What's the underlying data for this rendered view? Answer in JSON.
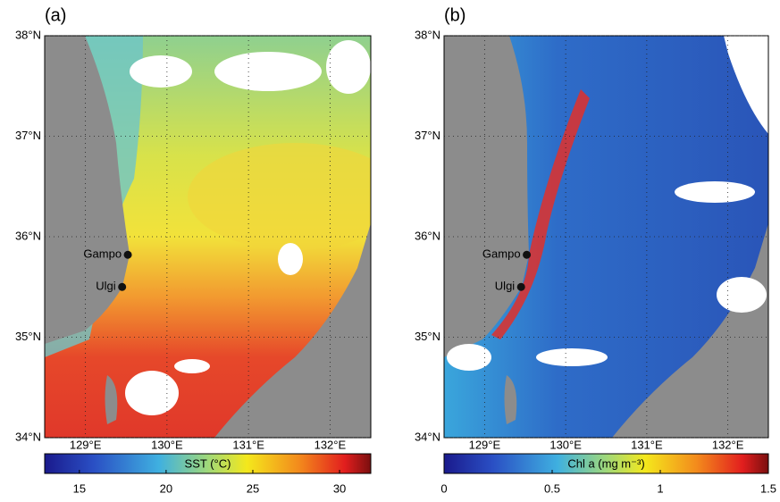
{
  "panels": [
    {
      "label": "(a)",
      "xlim": [
        128.5,
        132.5
      ],
      "ylim": [
        34,
        38
      ],
      "lat_ticks": [
        {
          "value": 34,
          "label": "34°N"
        },
        {
          "value": 35,
          "label": "35°N"
        },
        {
          "value": 36,
          "label": "36°N"
        },
        {
          "value": 37,
          "label": "37°N"
        },
        {
          "value": 38,
          "label": "38°N"
        }
      ],
      "lon_ticks": [
        {
          "value": 129,
          "label": "129°E"
        },
        {
          "value": 130,
          "label": "130°E"
        },
        {
          "value": 131,
          "label": "131°E"
        },
        {
          "value": 132,
          "label": "132°E"
        }
      ],
      "stations": [
        {
          "name": "Gampo",
          "lon": 129.52,
          "lat": 35.82
        },
        {
          "name": "Ulgi",
          "lon": 129.45,
          "lat": 35.5
        }
      ],
      "colorbar": {
        "label": "SST (°C)",
        "lim": [
          13,
          31.8
        ],
        "ticks": [
          15,
          20,
          25,
          30
        ]
      }
    },
    {
      "label": "(b)",
      "xlim": [
        128.5,
        132.5
      ],
      "ylim": [
        34,
        38
      ],
      "lat_ticks": [
        {
          "value": 34,
          "label": "34°N"
        },
        {
          "value": 35,
          "label": "35°N"
        },
        {
          "value": 36,
          "label": "36°N"
        },
        {
          "value": 37,
          "label": "37°N"
        },
        {
          "value": 38,
          "label": "38°N"
        }
      ],
      "lon_ticks": [
        {
          "value": 129,
          "label": "129°E"
        },
        {
          "value": 130,
          "label": "130°E"
        },
        {
          "value": 131,
          "label": "131°E"
        },
        {
          "value": 132,
          "label": "132°E"
        }
      ],
      "stations": [
        {
          "name": "Gampo",
          "lon": 129.52,
          "lat": 35.82
        },
        {
          "name": "Ulgi",
          "lon": 129.45,
          "lat": 35.5
        }
      ],
      "colorbar": {
        "label": "Chl a (mg m⁻³)",
        "lim": [
          0,
          1.5
        ],
        "ticks": [
          0,
          0.5,
          1,
          1.5
        ]
      }
    }
  ]
}
